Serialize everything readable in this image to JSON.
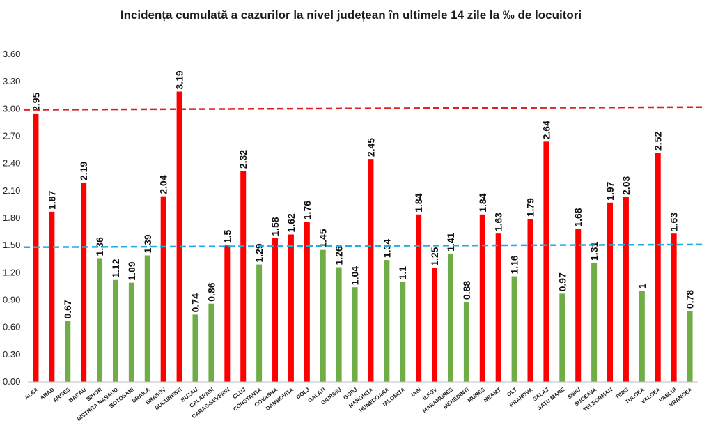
{
  "chart_data": {
    "type": "bar",
    "title": "Incidența cumulată a cazurilor la nivel județean în ultimele 14 zile la ‰ de locuitori",
    "xlabel": "",
    "ylabel": "",
    "ylim": [
      0,
      3.6
    ],
    "yticks": [
      "0.00",
      "0.30",
      "0.60",
      "0.90",
      "1.20",
      "1.50",
      "1.80",
      "2.10",
      "2.40",
      "2.70",
      "3.00",
      "3.30",
      "3.60"
    ],
    "grid": false,
    "legend": "none",
    "colors": {
      "above": "#ff0000",
      "below": "#70ad47",
      "red_line": "#e02020",
      "blue_line": "#1eaee0"
    },
    "categories": [
      "ALBA",
      "ARAD",
      "ARGES",
      "BACAU",
      "BIHOR",
      "BISTRITA NASAUD",
      "BOTOSANI",
      "BRAILA",
      "BRASOV",
      "BUCURESTI",
      "BUZAU",
      "CALARASI",
      "CARAS-SEVERIN",
      "CLUJ",
      "CONSTANTA",
      "COVASNA",
      "DAMBOVITA",
      "DOLJ",
      "GALATI",
      "GIURGIU",
      "GORJ",
      "HARGHITA",
      "HUNEDOARA",
      "IALOMITA",
      "IASI",
      "ILFOV",
      "MARAMURES",
      "MEHEDINTI",
      "MURES",
      "NEAMT",
      "OLT",
      "PRAHOVA",
      "SALAJ",
      "SATU MARE",
      "SIBIU",
      "SUCEAVA",
      "TELEORMAN",
      "TIMIS",
      "TULCEA",
      "VALCEA",
      "VASLUI",
      "VRANCEA"
    ],
    "values": [
      2.95,
      1.87,
      0.67,
      2.19,
      1.36,
      1.12,
      1.09,
      1.39,
      2.04,
      3.19,
      0.74,
      0.86,
      1.5,
      2.32,
      1.29,
      1.58,
      1.62,
      1.76,
      1.45,
      1.26,
      1.04,
      2.45,
      1.34,
      1.1,
      1.84,
      1.25,
      1.41,
      0.88,
      1.84,
      1.63,
      1.16,
      1.79,
      2.64,
      0.97,
      1.68,
      1.31,
      1.97,
      2.03,
      1,
      2.52,
      1.63,
      0.78
    ],
    "value_labels": [
      "2.95",
      "1.87",
      "0.67",
      "2.19",
      "1.36",
      "1.12",
      "1.09",
      "1.39",
      "2.04",
      "3.19",
      "0.74",
      "0.86",
      "1.5",
      "2.32",
      "1.29",
      "1.58",
      "1.62",
      "1.76",
      "1.45",
      "1.26",
      "1.04",
      "2.45",
      "1.34",
      "1.1",
      "1.84",
      "1.25",
      "1.41",
      "0.88",
      "1.84",
      "1.63",
      "1.16",
      "1.79",
      "2.64",
      "0.97",
      "1.68",
      "1.31",
      "1.97",
      "2.03",
      "1",
      "2.52",
      "1.63",
      "0.78"
    ],
    "bar_colors": [
      "red",
      "red",
      "green",
      "red",
      "green",
      "green",
      "green",
      "green",
      "red",
      "red",
      "green",
      "green",
      "red",
      "red",
      "green",
      "red",
      "red",
      "red",
      "green",
      "green",
      "green",
      "red",
      "green",
      "green",
      "red",
      "red",
      "green",
      "green",
      "red",
      "red",
      "green",
      "red",
      "red",
      "green",
      "red",
      "green",
      "red",
      "red",
      "green",
      "red",
      "red",
      "green"
    ],
    "reference_lines": [
      {
        "color": "red_line",
        "from": 2.99,
        "to": 3.02
      },
      {
        "color": "blue_line",
        "from": 1.48,
        "to": 1.51
      }
    ]
  }
}
